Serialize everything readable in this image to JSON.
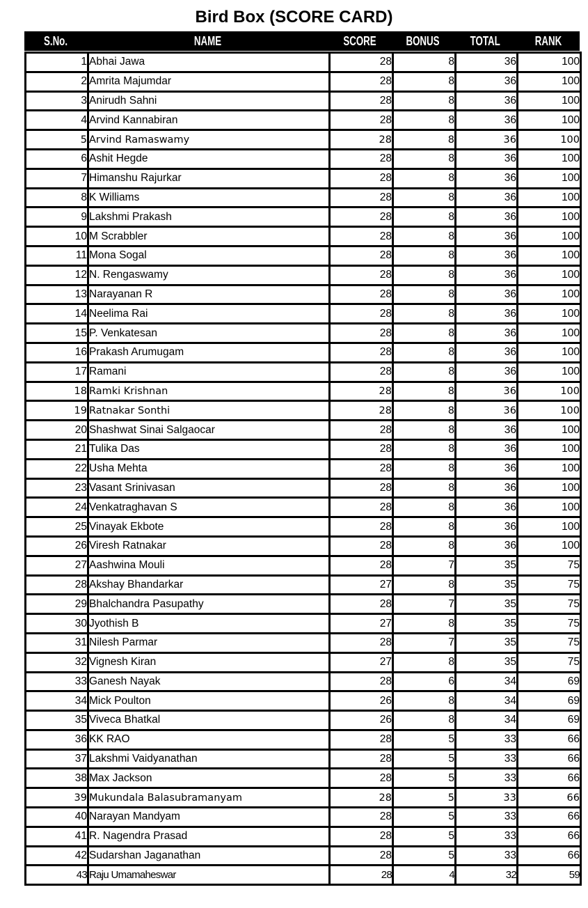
{
  "page_title": "Bird Box (SCORE CARD)",
  "colors": {
    "header_bg": "#000000",
    "header_text": "#ffffff",
    "body_text": "#000000",
    "border": "#000000",
    "background": "#ffffff"
  },
  "table": {
    "columns": [
      "S.No.",
      "NAME",
      "SCORE",
      "BONUS",
      "TOTAL",
      "RANK"
    ]
  },
  "rows": [
    {
      "sno": 1,
      "name": "Abhai Jawa",
      "score": 28,
      "bonus": 8,
      "total": 36,
      "rank": 100
    },
    {
      "sno": 2,
      "name": "Amrita Majumdar",
      "score": 28,
      "bonus": 8,
      "total": 36,
      "rank": 100
    },
    {
      "sno": 3,
      "name": "Anirudh Sahni",
      "score": 28,
      "bonus": 8,
      "total": 36,
      "rank": 100
    },
    {
      "sno": 4,
      "name": "Arvind Kannabiran",
      "score": 28,
      "bonus": 8,
      "total": 36,
      "rank": 100
    },
    {
      "sno": 5,
      "name": "Arvind Ramaswamy",
      "score": 28,
      "bonus": 8,
      "total": 36,
      "rank": 100
    },
    {
      "sno": 6,
      "name": "Ashit Hegde",
      "score": 28,
      "bonus": 8,
      "total": 36,
      "rank": 100
    },
    {
      "sno": 7,
      "name": "Himanshu Rajurkar",
      "score": 28,
      "bonus": 8,
      "total": 36,
      "rank": 100
    },
    {
      "sno": 8,
      "name": "K Williams",
      "score": 28,
      "bonus": 8,
      "total": 36,
      "rank": 100
    },
    {
      "sno": 9,
      "name": "Lakshmi Prakash",
      "score": 28,
      "bonus": 8,
      "total": 36,
      "rank": 100
    },
    {
      "sno": 10,
      "name": "M Scrabbler",
      "score": 28,
      "bonus": 8,
      "total": 36,
      "rank": 100
    },
    {
      "sno": 11,
      "name": "Mona Sogal",
      "score": 28,
      "bonus": 8,
      "total": 36,
      "rank": 100
    },
    {
      "sno": 12,
      "name": "N. Rengaswamy",
      "score": 28,
      "bonus": 8,
      "total": 36,
      "rank": 100
    },
    {
      "sno": 13,
      "name": "Narayanan R",
      "score": 28,
      "bonus": 8,
      "total": 36,
      "rank": 100
    },
    {
      "sno": 14,
      "name": "Neelima Rai",
      "score": 28,
      "bonus": 8,
      "total": 36,
      "rank": 100
    },
    {
      "sno": 15,
      "name": "P. Venkatesan",
      "score": 28,
      "bonus": 8,
      "total": 36,
      "rank": 100
    },
    {
      "sno": 16,
      "name": "Prakash Arumugam",
      "score": 28,
      "bonus": 8,
      "total": 36,
      "rank": 100
    },
    {
      "sno": 17,
      "name": "Ramani",
      "score": 28,
      "bonus": 8,
      "total": 36,
      "rank": 100
    },
    {
      "sno": 18,
      "name": "Ramki Krishnan",
      "score": 28,
      "bonus": 8,
      "total": 36,
      "rank": 100
    },
    {
      "sno": 19,
      "name": "Ratnakar Sonthi",
      "score": 28,
      "bonus": 8,
      "total": 36,
      "rank": 100
    },
    {
      "sno": 20,
      "name": "Shashwat Sinai Salgaocar",
      "score": 28,
      "bonus": 8,
      "total": 36,
      "rank": 100
    },
    {
      "sno": 21,
      "name": "Tulika Das",
      "score": 28,
      "bonus": 8,
      "total": 36,
      "rank": 100
    },
    {
      "sno": 22,
      "name": "Usha Mehta",
      "score": 28,
      "bonus": 8,
      "total": 36,
      "rank": 100
    },
    {
      "sno": 23,
      "name": "Vasant Srinivasan",
      "score": 28,
      "bonus": 8,
      "total": 36,
      "rank": 100
    },
    {
      "sno": 24,
      "name": "Venkatraghavan S",
      "score": 28,
      "bonus": 8,
      "total": 36,
      "rank": 100
    },
    {
      "sno": 25,
      "name": "Vinayak Ekbote",
      "score": 28,
      "bonus": 8,
      "total": 36,
      "rank": 100
    },
    {
      "sno": 26,
      "name": "Viresh Ratnakar",
      "score": 28,
      "bonus": 8,
      "total": 36,
      "rank": 100
    },
    {
      "sno": 27,
      "name": "Aashwina Mouli",
      "score": 28,
      "bonus": 7,
      "total": 35,
      "rank": 75
    },
    {
      "sno": 28,
      "name": "Akshay Bhandarkar",
      "score": 27,
      "bonus": 8,
      "total": 35,
      "rank": 75
    },
    {
      "sno": 29,
      "name": "Bhalchandra Pasupathy",
      "score": 28,
      "bonus": 7,
      "total": 35,
      "rank": 75
    },
    {
      "sno": 30,
      "name": "Jyothish B",
      "score": 27,
      "bonus": 8,
      "total": 35,
      "rank": 75
    },
    {
      "sno": 31,
      "name": "Nilesh Parmar",
      "score": 28,
      "bonus": 7,
      "total": 35,
      "rank": 75
    },
    {
      "sno": 32,
      "name": "Vignesh Kiran",
      "score": 27,
      "bonus": 8,
      "total": 35,
      "rank": 75
    },
    {
      "sno": 33,
      "name": "Ganesh Nayak",
      "score": 28,
      "bonus": 6,
      "total": 34,
      "rank": 69
    },
    {
      "sno": 34,
      "name": "Mick Poulton",
      "score": 26,
      "bonus": 8,
      "total": 34,
      "rank": 69
    },
    {
      "sno": 35,
      "name": "Viveca Bhatkal",
      "score": 26,
      "bonus": 8,
      "total": 34,
      "rank": 69
    },
    {
      "sno": 36,
      "name": "KK RAO",
      "score": 28,
      "bonus": 5,
      "total": 33,
      "rank": 66
    },
    {
      "sno": 37,
      "name": "Lakshmi Vaidyanathan",
      "score": 28,
      "bonus": 5,
      "total": 33,
      "rank": 66
    },
    {
      "sno": 38,
      "name": "Max Jackson",
      "score": 28,
      "bonus": 5,
      "total": 33,
      "rank": 66
    },
    {
      "sno": 39,
      "name": "Mukundala Balasubramanyam",
      "score": 28,
      "bonus": 5,
      "total": 33,
      "rank": 66
    },
    {
      "sno": 40,
      "name": "Narayan Mandyam",
      "score": 28,
      "bonus": 5,
      "total": 33,
      "rank": 66
    },
    {
      "sno": 41,
      "name": "R. Nagendra Prasad",
      "score": 28,
      "bonus": 5,
      "total": 33,
      "rank": 66
    },
    {
      "sno": 42,
      "name": "Sudarshan Jaganathan",
      "score": 28,
      "bonus": 5,
      "total": 33,
      "rank": 66
    },
    {
      "sno": 43,
      "name": "Raju Umamaheswar",
      "score": 28,
      "bonus": 4,
      "total": 32,
      "rank": 59
    }
  ]
}
